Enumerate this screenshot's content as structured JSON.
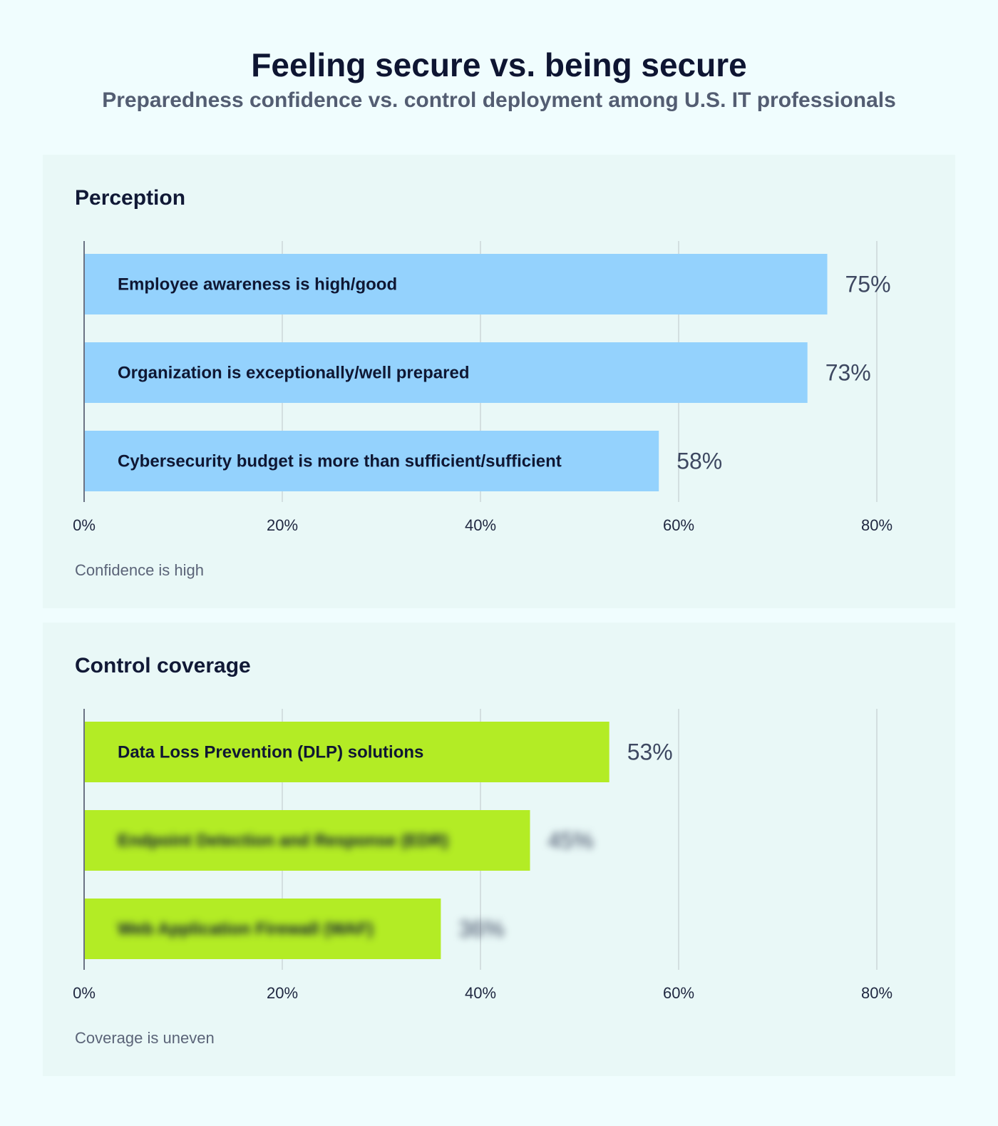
{
  "title": "Feeling secure vs. being secure",
  "subtitle": "Preparedness confidence vs. control deployment among U.S. IT professionals",
  "chart_data": [
    {
      "type": "bar",
      "orientation": "horizontal",
      "title": "Perception",
      "caption": "Confidence is high",
      "categories": [
        "Employee awareness is high/good",
        "Organization is exceptionally/well prepared",
        "Cybersecurity budget is more than sufficient/sufficient"
      ],
      "values": [
        75,
        73,
        58
      ],
      "value_labels": [
        "75%",
        "73%",
        "58%"
      ],
      "blurred": [
        false,
        false,
        false
      ],
      "xlim": [
        0,
        80
      ],
      "ticks": [
        0,
        20,
        40,
        60,
        80
      ],
      "tick_labels": [
        "0%",
        "20%",
        "40%",
        "60%",
        "80%"
      ],
      "grid": true,
      "color": "#94d2fd"
    },
    {
      "type": "bar",
      "orientation": "horizontal",
      "title": "Control coverage",
      "caption": "Coverage is uneven",
      "categories": [
        "Data Loss Prevention (DLP) solutions",
        "Endpoint Detection and Response (EDR)",
        "Web Application Firewall (WAF)"
      ],
      "values": [
        53,
        45,
        36
      ],
      "value_labels": [
        "53%",
        "45%",
        "36%"
      ],
      "blurred": [
        false,
        true,
        true
      ],
      "xlim": [
        0,
        80
      ],
      "ticks": [
        0,
        20,
        40,
        60,
        80
      ],
      "tick_labels": [
        "0%",
        "20%",
        "40%",
        "60%",
        "80%"
      ],
      "grid": true,
      "color": "#b3ec25"
    }
  ]
}
